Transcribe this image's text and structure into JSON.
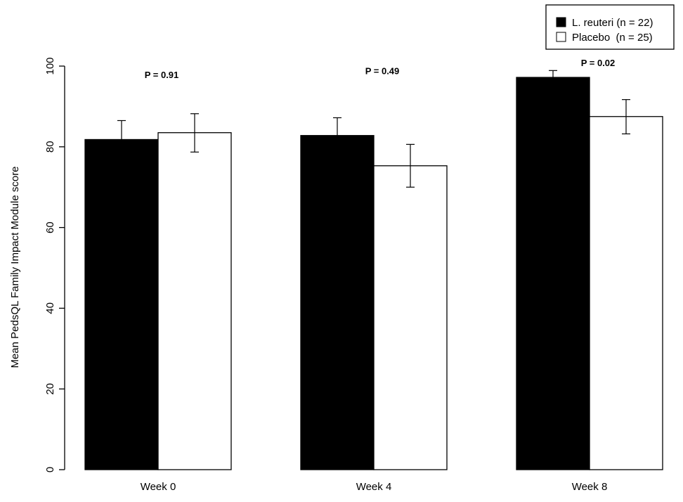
{
  "chart_data": {
    "type": "bar",
    "title": "",
    "xlabel": "",
    "ylabel": "Mean PedsQL Family Impact Module score",
    "ylim": [
      0,
      100
    ],
    "yticks": [
      0,
      20,
      40,
      60,
      80,
      100
    ],
    "categories": [
      "Week 0",
      "Week 4",
      "Week 8"
    ],
    "series": [
      {
        "name": "L. reuteri (n = 22)",
        "color": "#000000",
        "values": [
          81.8,
          82.8,
          97.2
        ],
        "error_low": [
          77.2,
          78.6,
          95.4
        ],
        "error_high": [
          86.5,
          87.2,
          98.9
        ]
      },
      {
        "name": "Placebo  (n = 25)",
        "color": "#ffffff",
        "values": [
          83.5,
          75.3,
          87.5
        ],
        "error_low": [
          78.7,
          70.0,
          83.2
        ],
        "error_high": [
          88.2,
          80.6,
          91.7
        ]
      }
    ],
    "annotations": [
      "P = 0.91",
      "P = 0.49",
      "P = 0.02"
    ],
    "annotation_y": [
      97,
      98,
      100
    ],
    "legend_position": "top-right",
    "grid": false
  }
}
